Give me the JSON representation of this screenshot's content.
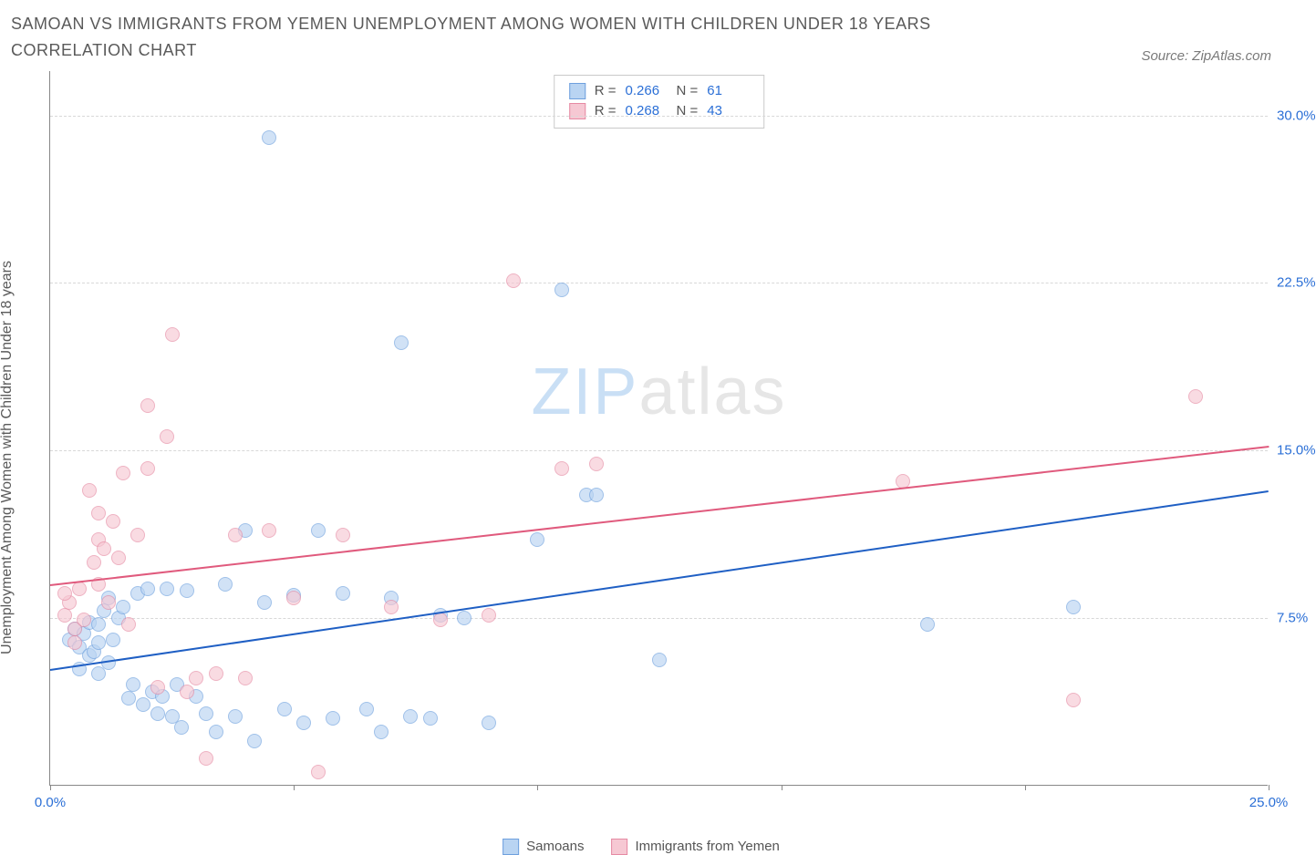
{
  "title": "SAMOAN VS IMMIGRANTS FROM YEMEN UNEMPLOYMENT AMONG WOMEN WITH CHILDREN UNDER 18 YEARS CORRELATION CHART",
  "source": "Source: ZipAtlas.com",
  "ylabel": "Unemployment Among Women with Children Under 18 years",
  "watermark": {
    "part1": "ZIP",
    "part2": "atlas"
  },
  "chart": {
    "type": "scatter",
    "xlim": [
      0,
      25
    ],
    "ylim": [
      0,
      32
    ],
    "xticks": [
      0,
      5,
      10,
      15,
      20,
      25
    ],
    "xtick_labels": [
      "0.0%",
      "",
      "",
      "",
      "",
      "25.0%"
    ],
    "yticks": [
      7.5,
      15,
      22.5,
      30
    ],
    "ytick_labels": [
      "7.5%",
      "15.0%",
      "22.5%",
      "30.0%"
    ],
    "grid_color": "#d8d8d8",
    "background_color": "#ffffff",
    "marker_radius": 8,
    "marker_border_width": 1,
    "series": [
      {
        "name": "Samoans",
        "fill": "#b9d4f2",
        "stroke": "#6ea0de",
        "fill_opacity": 0.65,
        "trend_color": "#1f5fc4",
        "trend_y0": 5.2,
        "trend_y25": 13.2,
        "R": "0.266",
        "N": "61",
        "points": [
          [
            0.4,
            6.5
          ],
          [
            0.5,
            7.0
          ],
          [
            0.6,
            6.2
          ],
          [
            0.7,
            6.8
          ],
          [
            0.8,
            5.8
          ],
          [
            0.8,
            7.3
          ],
          [
            0.9,
            6.0
          ],
          [
            1.0,
            7.2
          ],
          [
            1.0,
            6.4
          ],
          [
            1.1,
            7.8
          ],
          [
            1.2,
            5.5
          ],
          [
            1.2,
            8.4
          ],
          [
            1.3,
            6.5
          ],
          [
            1.4,
            7.5
          ],
          [
            1.5,
            8.0
          ],
          [
            1.6,
            3.9
          ],
          [
            1.7,
            4.5
          ],
          [
            1.8,
            8.6
          ],
          [
            1.9,
            3.6
          ],
          [
            2.0,
            8.8
          ],
          [
            2.1,
            4.2
          ],
          [
            2.2,
            3.2
          ],
          [
            2.3,
            4.0
          ],
          [
            2.4,
            8.8
          ],
          [
            2.5,
            3.1
          ],
          [
            2.6,
            4.5
          ],
          [
            2.7,
            2.6
          ],
          [
            2.8,
            8.7
          ],
          [
            3.0,
            4.0
          ],
          [
            3.2,
            3.2
          ],
          [
            3.4,
            2.4
          ],
          [
            3.6,
            9.0
          ],
          [
            3.8,
            3.1
          ],
          [
            4.0,
            11.4
          ],
          [
            4.2,
            2.0
          ],
          [
            4.4,
            8.2
          ],
          [
            4.5,
            29.0
          ],
          [
            4.8,
            3.4
          ],
          [
            5.0,
            8.5
          ],
          [
            5.2,
            2.8
          ],
          [
            5.5,
            11.4
          ],
          [
            5.8,
            3.0
          ],
          [
            6.0,
            8.6
          ],
          [
            6.5,
            3.4
          ],
          [
            6.8,
            2.4
          ],
          [
            7.0,
            8.4
          ],
          [
            7.2,
            19.8
          ],
          [
            7.4,
            3.1
          ],
          [
            7.8,
            3.0
          ],
          [
            8.0,
            7.6
          ],
          [
            8.5,
            7.5
          ],
          [
            9.0,
            2.8
          ],
          [
            10.0,
            11.0
          ],
          [
            10.5,
            22.2
          ],
          [
            11.0,
            13.0
          ],
          [
            11.2,
            13.0
          ],
          [
            12.5,
            5.6
          ],
          [
            18.0,
            7.2
          ],
          [
            21.0,
            8.0
          ],
          [
            1.0,
            5.0
          ],
          [
            0.6,
            5.2
          ]
        ]
      },
      {
        "name": "Immigrants from Yemen",
        "fill": "#f6c8d3",
        "stroke": "#e68aa3",
        "fill_opacity": 0.65,
        "trend_color": "#e05a7d",
        "trend_y0": 9.0,
        "trend_y25": 15.2,
        "R": "0.268",
        "N": "43",
        "points": [
          [
            0.3,
            7.6
          ],
          [
            0.4,
            8.2
          ],
          [
            0.5,
            7.0
          ],
          [
            0.6,
            8.8
          ],
          [
            0.7,
            7.4
          ],
          [
            0.8,
            13.2
          ],
          [
            0.9,
            10.0
          ],
          [
            1.0,
            11.0
          ],
          [
            1.0,
            12.2
          ],
          [
            1.1,
            10.6
          ],
          [
            1.2,
            8.2
          ],
          [
            1.3,
            11.8
          ],
          [
            1.4,
            10.2
          ],
          [
            1.5,
            14.0
          ],
          [
            1.6,
            7.2
          ],
          [
            1.8,
            11.2
          ],
          [
            2.0,
            14.2
          ],
          [
            2.0,
            17.0
          ],
          [
            2.2,
            4.4
          ],
          [
            2.4,
            15.6
          ],
          [
            2.5,
            20.2
          ],
          [
            2.8,
            4.2
          ],
          [
            3.0,
            4.8
          ],
          [
            3.2,
            1.2
          ],
          [
            3.4,
            5.0
          ],
          [
            3.8,
            11.2
          ],
          [
            4.0,
            4.8
          ],
          [
            4.5,
            11.4
          ],
          [
            5.0,
            8.4
          ],
          [
            5.5,
            0.6
          ],
          [
            6.0,
            11.2
          ],
          [
            7.0,
            8.0
          ],
          [
            8.0,
            7.4
          ],
          [
            9.0,
            7.6
          ],
          [
            9.5,
            22.6
          ],
          [
            10.5,
            14.2
          ],
          [
            11.2,
            14.4
          ],
          [
            17.5,
            13.6
          ],
          [
            21.0,
            3.8
          ],
          [
            23.5,
            17.4
          ],
          [
            0.3,
            8.6
          ],
          [
            0.5,
            6.4
          ],
          [
            1.0,
            9.0
          ]
        ]
      }
    ]
  },
  "legend": {
    "series1": "Samoans",
    "series2": "Immigrants from Yemen"
  }
}
